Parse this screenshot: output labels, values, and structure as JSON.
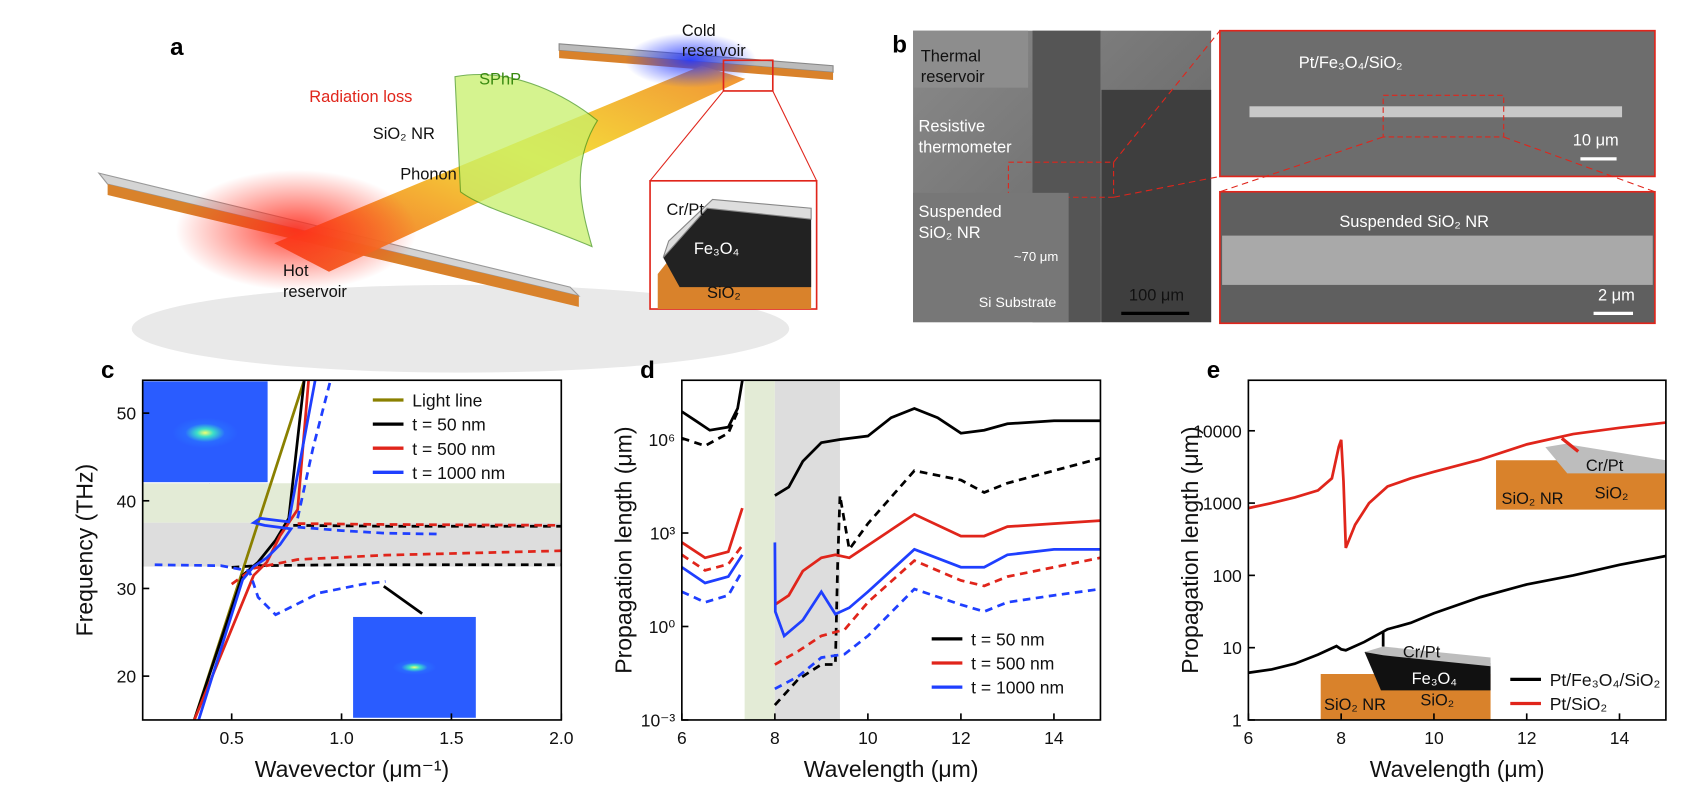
{
  "panel_a": {
    "label": "a",
    "radiation_loss": "Radiation loss",
    "sphp": "SPhP",
    "sio2_nr": "SiO₂ NR",
    "phonon": "Phonon",
    "cold_reservoir": [
      "Cold",
      "reservoir"
    ],
    "hot_reservoir": [
      "Hot",
      "reservoir"
    ],
    "inset": {
      "top": "Cr/Pt",
      "middle": "Fe₃O₄",
      "bottom": "SiO₂"
    }
  },
  "panel_b": {
    "label": "b",
    "thermal_reservoir": [
      "Thermal",
      "reservoir"
    ],
    "resistive_thermometer": [
      "Resistive",
      "thermometer"
    ],
    "suspended": [
      "Suspended",
      "SiO₂ NR"
    ],
    "depth": "~70 μm",
    "substrate": "Si Substrate",
    "scale_bar": "100 μm",
    "top_right": {
      "material": "Pt/Fe₃O₄/SiO₂",
      "scale_bar": "10 μm"
    },
    "bottom_right": {
      "label": "Suspended SiO₂ NR",
      "scale_bar": "2 μm"
    }
  },
  "panel_e_insets": {
    "upper": {
      "top": "Cr/Pt",
      "left": "SiO₂ NR",
      "right": "SiO₂"
    },
    "lower": {
      "top": "Cr/Pt",
      "middle": "Fe₃O₄",
      "left": "SiO₂ NR",
      "right": "SiO₂"
    }
  },
  "chart_data": [
    {
      "type": "line",
      "label": "c",
      "xlabel": "Wavevector (μm⁻¹)",
      "ylabel": "Frequency (THz)",
      "xlim": [
        0.095,
        2.0
      ],
      "ylim": [
        15,
        53.75
      ],
      "xticks": [
        0.5,
        {
          "value": 1,
          "label": "1.0"
        },
        1.5,
        {
          "value": 2,
          "label": "2.0"
        }
      ],
      "yticks": [
        20,
        30,
        40,
        50
      ],
      "log_y": false,
      "legend": "upper right",
      "bands": [
        {
          "axis": "y",
          "range": [
            37.5,
            42
          ],
          "color": "#e3ebd6"
        },
        {
          "axis": "y",
          "range": [
            32.5,
            37.5
          ],
          "color": "#dddddd"
        }
      ],
      "series": [
        {
          "name": "Light line",
          "color": "#8a8000",
          "x": [
            0.33,
            0.83
          ],
          "values": [
            15,
            53.75
          ]
        },
        {
          "name": "t = 50 nm",
          "color": "#000000",
          "x": [
            0.33,
            0.55,
            0.62,
            0.7,
            0.76,
            0.83
          ],
          "values": [
            15,
            31.5,
            33,
            35.5,
            38,
            53.75
          ],
          "dashed_x": [
            0.5,
            0.62,
            1.0,
            2.0,
            1.5,
            0.78,
            1.2,
            2.0
          ],
          "dashed_values": [
            32.4,
            32.6,
            32.7,
            32.7,
            null,
            37.2,
            37.1,
            37.1
          ]
        },
        {
          "name": "t = 500 nm",
          "color": "#e0251b",
          "x": [
            0.33,
            0.6,
            0.66,
            0.72,
            0.8,
            0.85
          ],
          "values": [
            15,
            31.5,
            33,
            36,
            39,
            53.75
          ],
          "dashed_x": [
            0.5,
            0.6,
            0.8,
            1.2,
            2.0,
            1.5,
            0.8,
            1.2,
            2.0
          ],
          "dashed_values": [
            30.5,
            32.3,
            33.3,
            33.8,
            34.3,
            null,
            37.4,
            37.3,
            37.2
          ]
        },
        {
          "name": "t = 1000 nm",
          "color": "#1f3fff",
          "x": [
            0.35,
            0.55,
            0.6,
            0.66,
            0.72,
            0.77,
            0.65,
            0.6,
            0.63,
            0.76,
            0.88
          ],
          "values": [
            15,
            31,
            32.5,
            33.5,
            35,
            36.8,
            37.2,
            37.5,
            38,
            37.6,
            53.75
          ],
          "dashed_x": [
            0.15,
            0.45,
            0.58,
            0.62,
            0.7,
            0.9,
            1.1,
            1.2,
            1.0,
            0.8,
            1.0,
            1.2,
            1.45,
            1.1,
            0.8,
            0.87,
            0.95
          ],
          "dashed_values": [
            32.7,
            32.6,
            32,
            29,
            27,
            29.5,
            30.5,
            30.8,
            null,
            37,
            36.6,
            36.3,
            36.2,
            null,
            38,
            46,
            53.75
          ]
        }
      ]
    },
    {
      "type": "line",
      "label": "d",
      "xlabel": "Wavelength (μm)",
      "ylabel": "Propagation length (μm)",
      "xlim": [
        6,
        15
      ],
      "ylim": [
        0.001,
        80000000.0
      ],
      "xticks": [
        6,
        8,
        10,
        12,
        14
      ],
      "yticks": [
        {
          "value": 0.001,
          "label": "10⁻³"
        },
        {
          "value": 1,
          "label": "10⁰"
        },
        {
          "value": 1000,
          "label": "10³"
        },
        {
          "value": 1000000.0,
          "label": "10⁶"
        }
      ],
      "log_y": true,
      "legend": "lower right",
      "bands": [
        {
          "axis": "x",
          "range": [
            7.35,
            8.0
          ],
          "color": "#e3ebd6"
        },
        {
          "axis": "x",
          "range": [
            8.0,
            9.4
          ],
          "color": "#dddddd"
        }
      ],
      "series": [
        {
          "name": "t = 50 nm",
          "color": "#000000",
          "x": [
            6,
            6.3,
            6.6,
            7,
            7.2,
            7.3,
            7.6,
            8,
            8.3,
            8.6,
            9,
            9.4,
            10,
            10.5,
            11,
            11.5,
            12,
            12.5,
            13,
            14,
            15
          ],
          "values": [
            7900000.0,
            4000000.0,
            2000000.0,
            2500000.0,
            10000000.0,
            79000000.0,
            null,
            16000.0,
            30000.0,
            200000.0,
            800000.0,
            1000000.0,
            1300000.0,
            5000000.0,
            10000000.0,
            5000000.0,
            1600000.0,
            2000000.0,
            3200000.0,
            4000000.0,
            4000000.0
          ],
          "dashed_x": [
            6,
            6.5,
            7,
            7.2,
            7.6,
            8,
            8.5,
            9,
            9.3,
            9.35,
            9.4,
            9.6,
            10,
            11,
            12,
            12.5,
            13,
            14,
            15
          ],
          "dashed_values": [
            1100000.0,
            630000.0,
            1600000.0,
            7900000.0,
            null,
            0.003,
            0.02,
            0.06,
            0.06,
            100,
            16000.0,
            300,
            2000,
            100000.0,
            50000.0,
            20000.0,
            40000.0,
            100000.0,
            250000.0
          ]
        },
        {
          "name": "t = 500 nm",
          "color": "#e0251b",
          "x": [
            6,
            6.5,
            7,
            7.3,
            7.6,
            8,
            8.3,
            8.6,
            9,
            9.3,
            9.6,
            10,
            11,
            12,
            12.5,
            13,
            14,
            15
          ],
          "values": [
            500,
            160,
            250,
            6300,
            null,
            5,
            10,
            60,
            160,
            200,
            160,
            400,
            4000,
            800,
            800,
            1600,
            2000,
            2500
          ],
          "dashed_x": [
            6,
            6.5,
            7,
            7.3,
            7.6,
            8,
            8.5,
            9,
            9.5,
            10,
            11,
            12,
            12.5,
            13,
            14,
            15
          ],
          "dashed_values": [
            200,
            63,
            100,
            400,
            null,
            0.06,
            0.16,
            0.5,
            0.8,
            6,
            130,
            30,
            20,
            40,
            80,
            160
          ]
        },
        {
          "name": "t = 1000 nm",
          "color": "#1f3fff",
          "x": [
            6,
            6.5,
            7,
            7.3,
            7.6,
            8,
            8.01,
            8.2,
            8.6,
            9,
            9.3,
            9.6,
            10,
            11,
            12,
            12.5,
            13,
            14,
            15
          ],
          "values": [
            80,
            25,
            40,
            200,
            null,
            500,
            3,
            0.5,
            1.6,
            13,
            2.5,
            4,
            13,
            300,
            80,
            80,
            200,
            300,
            300
          ],
          "dashed_x": [
            6,
            6.5,
            7,
            7.3,
            7.6,
            8,
            8.5,
            9,
            9.5,
            10,
            11,
            12,
            12.5,
            13,
            14,
            15
          ],
          "dashed_values": [
            13,
            6,
            10,
            60,
            null,
            0.01,
            0.025,
            0.1,
            0.13,
            0.5,
            16,
            5,
            3,
            6,
            10,
            16
          ]
        }
      ]
    },
    {
      "type": "line",
      "label": "e",
      "xlabel": "Wavelength (μm)",
      "ylabel": "Propagation length (μm)",
      "xlim": [
        6,
        15
      ],
      "ylim": [
        1,
        50000
      ],
      "xticks": [
        6,
        8,
        10,
        12,
        14
      ],
      "yticks": [
        1,
        10,
        100,
        1000,
        10000
      ],
      "log_y": true,
      "legend": "lower right",
      "bands": [],
      "series": [
        {
          "name": "Pt/Fe₃O₄/SiO₂",
          "color": "#000000",
          "x": [
            6,
            6.5,
            7,
            7.5,
            7.9,
            8.0,
            8.1,
            8.5,
            9,
            9.5,
            10,
            11,
            12,
            13,
            14,
            15
          ],
          "values": [
            4.5,
            5,
            6,
            8,
            10.5,
            9.5,
            9.2,
            12,
            18,
            22,
            30,
            50,
            75,
            100,
            140,
            185
          ]
        },
        {
          "name": "Pt/SiO₂",
          "color": "#e0251b",
          "x": [
            6,
            6.5,
            7,
            7.5,
            7.8,
            7.95,
            8.0,
            8.05,
            8.1,
            8.3,
            8.6,
            9,
            9.5,
            10,
            11,
            12,
            13,
            14,
            15
          ],
          "values": [
            850,
            1000,
            1200,
            1500,
            2200,
            6000,
            7500,
            2000,
            240,
            500,
            1000,
            1700,
            2200,
            2700,
            4000,
            6500,
            9000,
            11000,
            13000
          ]
        }
      ]
    }
  ]
}
